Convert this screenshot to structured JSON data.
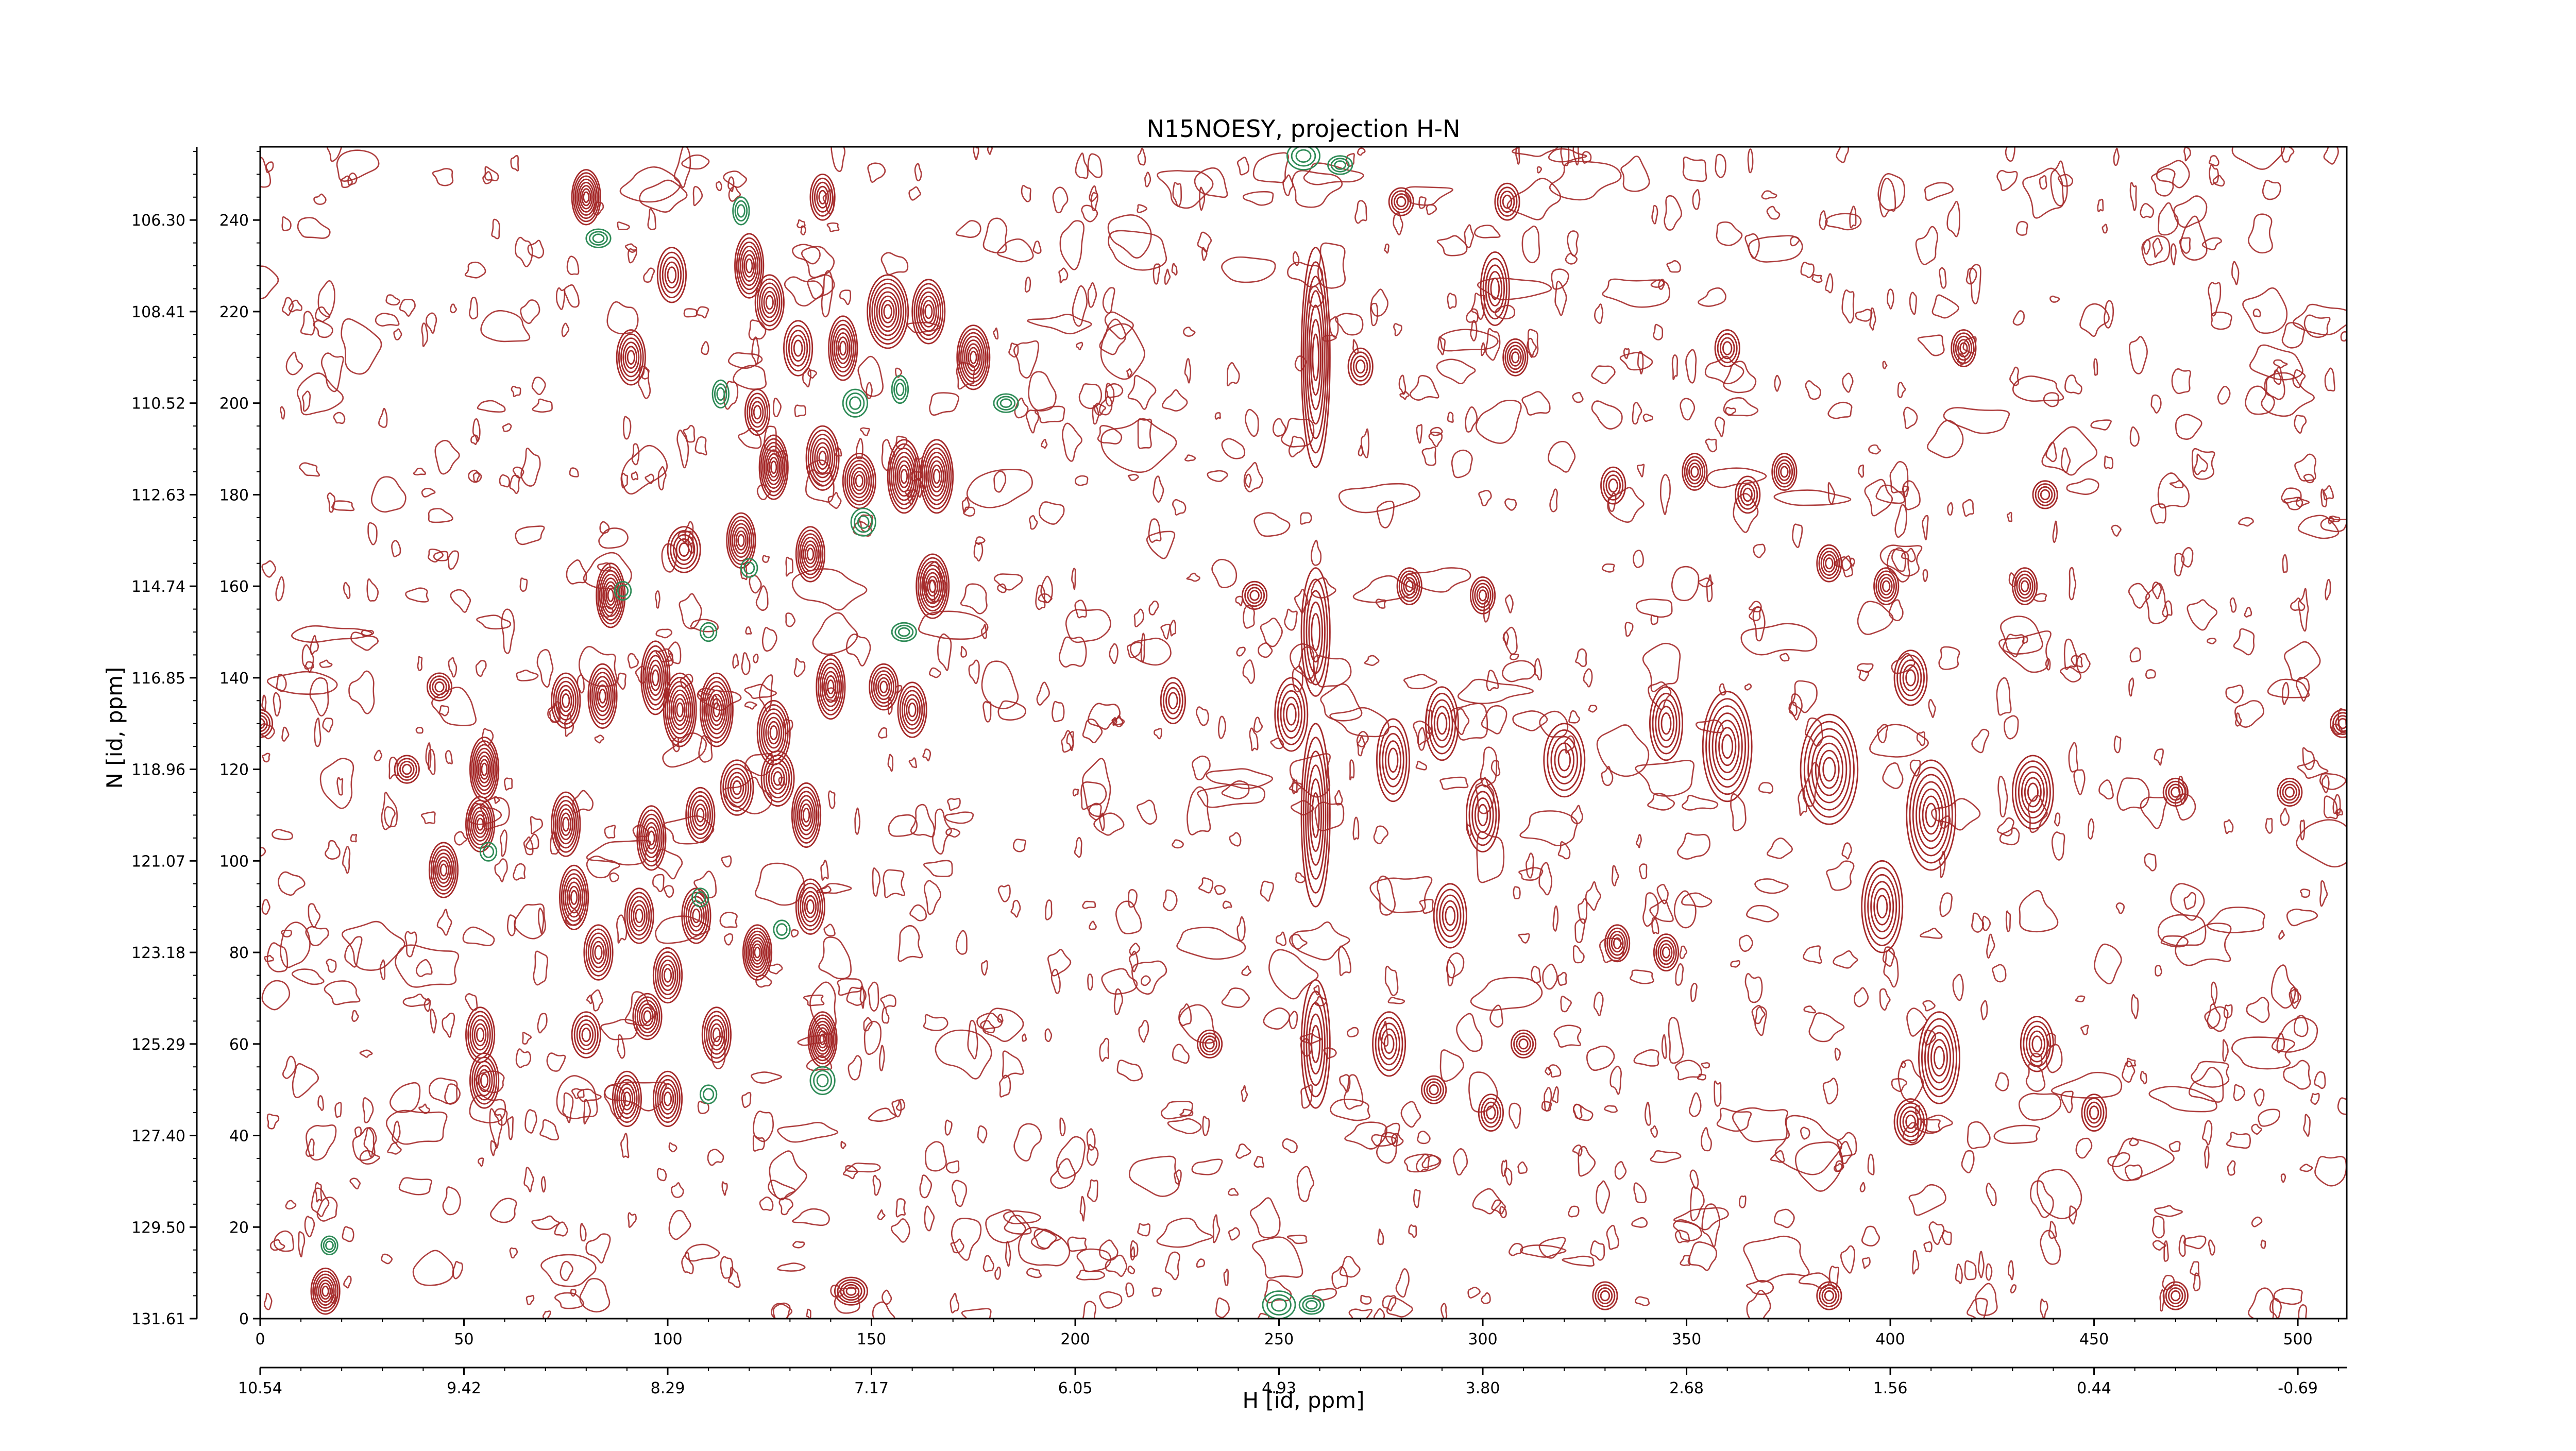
{
  "chart_data": {
    "type": "contour",
    "title": "N15NOESY, projection H-N",
    "xlabel": "H [id, ppm]",
    "ylabel": "N [id, ppm]",
    "x_point_axis": {
      "range": [
        0,
        512
      ],
      "ticks": [
        0,
        50,
        100,
        150,
        200,
        250,
        300,
        350,
        400,
        450,
        500
      ]
    },
    "y_point_axis": {
      "range": [
        0,
        256
      ],
      "ticks": [
        0,
        20,
        40,
        60,
        80,
        100,
        120,
        140,
        160,
        180,
        200,
        220,
        240
      ]
    },
    "x_ppm_axis": {
      "ticks": [
        "10.54",
        "9.42",
        "8.29",
        "7.17",
        "6.05",
        "4.93",
        "3.80",
        "2.68",
        "1.56",
        "0.44",
        "-0.69"
      ]
    },
    "y_ppm_axis": {
      "ticks": [
        "131.61",
        "129.50",
        "127.40",
        "125.29",
        "123.18",
        "121.07",
        "118.96",
        "116.85",
        "114.74",
        "112.63",
        "110.52",
        "108.41",
        "106.30"
      ]
    },
    "colors": {
      "positive_contours": "#a52a2a",
      "negative_contours": "#2e8b57",
      "axes": "#000000",
      "background": "#ffffff"
    },
    "peaks": [
      [
        80,
        245,
        3.5,
        6,
        8
      ],
      [
        120,
        230,
        3.5,
        7,
        7
      ],
      [
        138,
        245,
        3,
        5,
        5
      ],
      [
        101,
        228,
        3.5,
        6,
        5
      ],
      [
        91,
        210,
        3.5,
        6,
        6
      ],
      [
        125,
        222,
        3.5,
        6,
        6
      ],
      [
        132,
        212,
        3.5,
        6,
        5
      ],
      [
        143,
        212,
        3.5,
        7,
        7
      ],
      [
        154,
        220,
        5,
        8,
        8
      ],
      [
        164,
        220,
        4,
        7,
        7
      ],
      [
        175,
        210,
        4,
        7,
        8
      ],
      [
        122,
        198,
        3,
        5,
        5
      ],
      [
        126,
        186,
        3.5,
        7,
        8
      ],
      [
        138,
        188,
        4,
        7,
        7
      ],
      [
        147,
        183,
        4,
        6,
        7
      ],
      [
        158,
        184,
        4,
        8,
        8
      ],
      [
        166,
        184,
        4,
        8,
        8
      ],
      [
        118,
        170,
        3.5,
        6,
        7
      ],
      [
        135,
        167,
        3.5,
        6,
        7
      ],
      [
        104,
        168,
        4,
        5,
        5
      ],
      [
        165,
        160,
        4,
        7,
        8
      ],
      [
        86,
        158,
        3.5,
        7,
        8
      ],
      [
        97,
        140,
        3.5,
        8,
        7
      ],
      [
        84,
        136,
        3.5,
        7,
        7
      ],
      [
        75,
        135,
        3.5,
        6,
        6
      ],
      [
        103,
        133,
        4,
        8,
        8
      ],
      [
        112,
        133,
        4,
        8,
        8
      ],
      [
        126,
        128,
        4,
        7,
        7
      ],
      [
        140,
        138,
        3.5,
        7,
        7
      ],
      [
        153,
        138,
        3.5,
        5,
        6
      ],
      [
        160,
        133,
        3.5,
        6,
        6
      ],
      [
        117,
        116,
        4,
        6,
        6
      ],
      [
        127,
        118,
        4,
        6,
        6
      ],
      [
        134,
        110,
        3.5,
        7,
        7
      ],
      [
        55,
        120,
        3.5,
        7,
        8
      ],
      [
        54,
        108,
        3.5,
        6,
        7
      ],
      [
        45,
        98,
        3.5,
        6,
        7
      ],
      [
        75,
        108,
        3.5,
        7,
        7
      ],
      [
        77,
        92,
        3.5,
        7,
        7
      ],
      [
        96,
        105,
        3.5,
        7,
        7
      ],
      [
        108,
        110,
        3.5,
        6,
        6
      ],
      [
        93,
        88,
        3.5,
        6,
        6
      ],
      [
        107,
        88,
        3.5,
        6,
        6
      ],
      [
        122,
        80,
        3.5,
        6,
        8
      ],
      [
        135,
        90,
        3.5,
        6,
        6
      ],
      [
        83,
        80,
        3.5,
        6,
        6
      ],
      [
        100,
        75,
        3.5,
        6,
        6
      ],
      [
        95,
        66,
        3.5,
        5,
        6
      ],
      [
        112,
        62,
        3.5,
        6,
        6
      ],
      [
        54,
        62,
        3.5,
        6,
        6
      ],
      [
        55,
        52,
        3.5,
        6,
        6
      ],
      [
        80,
        62,
        3.5,
        5,
        5
      ],
      [
        138,
        61,
        3.5,
        6,
        8
      ],
      [
        90,
        48,
        3.5,
        6,
        6
      ],
      [
        100,
        48,
        3.5,
        6,
        6
      ],
      [
        16,
        6,
        3.5,
        5,
        7
      ],
      [
        145,
        6,
        4,
        3,
        5
      ],
      [
        259,
        210,
        3.5,
        24,
        7
      ],
      [
        259,
        150,
        3.5,
        14,
        5
      ],
      [
        259,
        110,
        3.5,
        20,
        6
      ],
      [
        259,
        60,
        3.5,
        14,
        5
      ],
      [
        278,
        122,
        4,
        9,
        5
      ],
      [
        290,
        130,
        4,
        8,
        5
      ],
      [
        300,
        110,
        4,
        8,
        5
      ],
      [
        292,
        88,
        4,
        7,
        5
      ],
      [
        277,
        60,
        4,
        7,
        5
      ],
      [
        300,
        158,
        3,
        4,
        5
      ],
      [
        282,
        160,
        3,
        4,
        5
      ],
      [
        244,
        158,
        3,
        3,
        4
      ],
      [
        224,
        135,
        3,
        5,
        4
      ],
      [
        253,
        132,
        4,
        8,
        5
      ],
      [
        320,
        122,
        5,
        8,
        5
      ],
      [
        333,
        82,
        3,
        4,
        5
      ],
      [
        270,
        208,
        3,
        4,
        4
      ],
      [
        303,
        225,
        3.5,
        8,
        5
      ],
      [
        280,
        244,
        3,
        3,
        4
      ],
      [
        306,
        244,
        3,
        4,
        4
      ],
      [
        308,
        210,
        3,
        4,
        5
      ],
      [
        345,
        80,
        3,
        4,
        5
      ],
      [
        345,
        130,
        4,
        8,
        5
      ],
      [
        360,
        125,
        6,
        12,
        7
      ],
      [
        385,
        120,
        7,
        12,
        7
      ],
      [
        410,
        110,
        6,
        12,
        7
      ],
      [
        398,
        90,
        5,
        10,
        6
      ],
      [
        405,
        140,
        4,
        6,
        5
      ],
      [
        435,
        115,
        5,
        8,
        6
      ],
      [
        412,
        57,
        5,
        10,
        6
      ],
      [
        436,
        60,
        4,
        6,
        5
      ],
      [
        450,
        45,
        3,
        4,
        4
      ],
      [
        405,
        43,
        4,
        5,
        5
      ],
      [
        433,
        160,
        3,
        4,
        5
      ],
      [
        399,
        160,
        3,
        4,
        5
      ],
      [
        385,
        165,
        3,
        4,
        5
      ],
      [
        352,
        185,
        3,
        4,
        5
      ],
      [
        374,
        185,
        3,
        4,
        5
      ],
      [
        365,
        180,
        3,
        4,
        4
      ],
      [
        418,
        212,
        3,
        4,
        5
      ],
      [
        360,
        212,
        3,
        4,
        4
      ],
      [
        332,
        182,
        3,
        4,
        4
      ],
      [
        438,
        180,
        3,
        3,
        4
      ],
      [
        302,
        45,
        3,
        4,
        4
      ],
      [
        288,
        50,
        3,
        3,
        4
      ],
      [
        310,
        60,
        3,
        3,
        4
      ],
      [
        233,
        60,
        3,
        3,
        4
      ],
      [
        330,
        5,
        3,
        3,
        4
      ],
      [
        385,
        5,
        3,
        3,
        4
      ],
      [
        470,
        5,
        3,
        3,
        4
      ],
      [
        470,
        115,
        3,
        3,
        4
      ],
      [
        498,
        115,
        3,
        3,
        4
      ],
      [
        511,
        130,
        3,
        3,
        4
      ],
      [
        0,
        130,
        3,
        3,
        4
      ],
      [
        36,
        120,
        3,
        3,
        4
      ],
      [
        44,
        138,
        3,
        3,
        4
      ]
    ],
    "negative_peaks": [
      [
        83,
        236,
        3,
        2,
        3
      ],
      [
        118,
        242,
        2,
        3,
        3
      ],
      [
        113,
        202,
        2,
        3,
        3
      ],
      [
        146,
        200,
        3,
        3,
        3
      ],
      [
        157,
        203,
        2,
        3,
        3
      ],
      [
        148,
        174,
        3,
        3,
        3
      ],
      [
        89,
        159,
        2,
        2,
        2
      ],
      [
        120,
        164,
        2,
        2,
        2
      ],
      [
        158,
        150,
        3,
        2,
        3
      ],
      [
        110,
        150,
        2,
        2,
        2
      ],
      [
        128,
        85,
        2,
        2,
        2
      ],
      [
        138,
        52,
        3,
        3,
        3
      ],
      [
        110,
        49,
        2,
        2,
        2
      ],
      [
        108,
        92,
        2,
        2,
        2
      ],
      [
        183,
        200,
        3,
        2,
        3
      ],
      [
        17,
        16,
        2,
        2,
        3
      ],
      [
        250,
        3,
        4,
        3,
        3
      ],
      [
        258,
        3,
        3,
        2,
        3
      ],
      [
        256,
        254,
        4,
        3,
        3
      ],
      [
        265,
        252,
        3,
        2,
        3
      ],
      [
        56,
        102,
        2,
        2,
        2
      ]
    ]
  }
}
